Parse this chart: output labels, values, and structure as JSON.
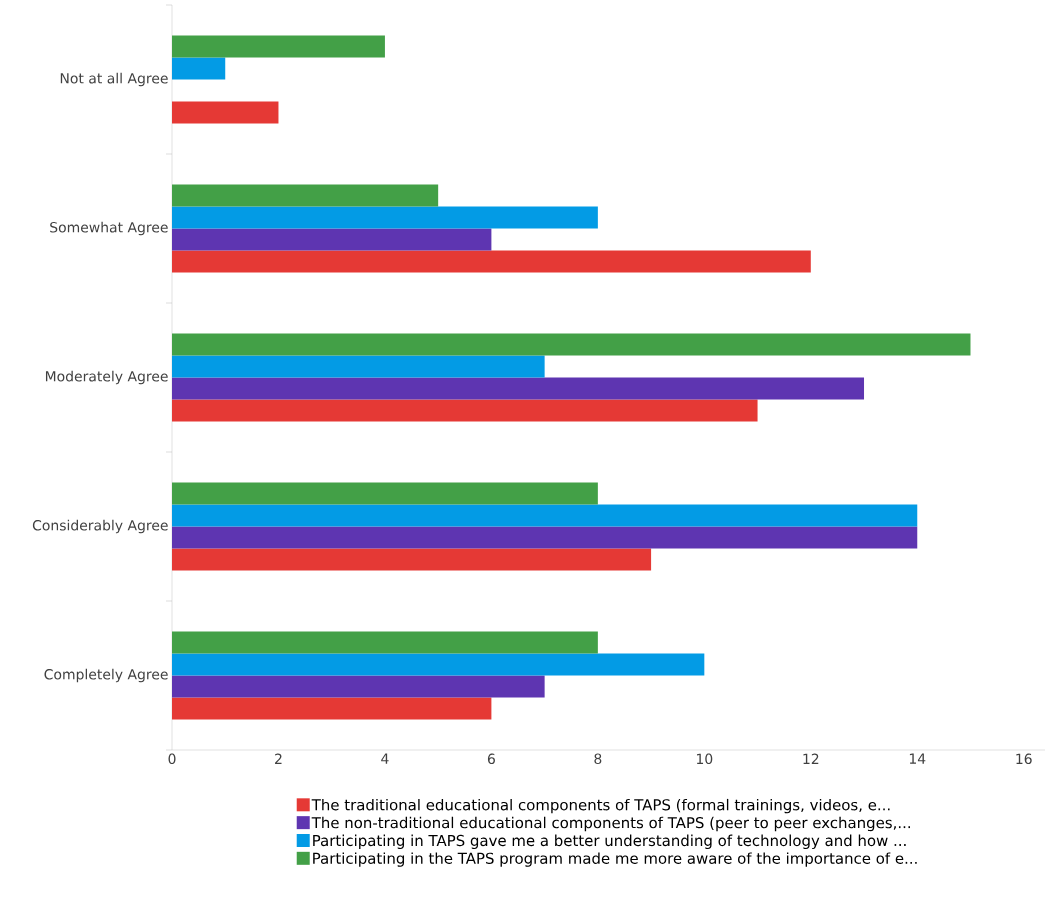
{
  "chart_data": {
    "type": "bar",
    "orientation": "horizontal",
    "categories": [
      "Not at all Agree",
      "Somewhat Agree",
      "Moderately Agree",
      "Considerably Agree",
      "Completely Agree"
    ],
    "series": [
      {
        "name": "The traditional educational components of TAPS (formal trainings, videos, e...",
        "color": "#e53935",
        "values": [
          2,
          12,
          11,
          9,
          6
        ]
      },
      {
        "name": "The non-traditional educational components of TAPS (peer to peer exchanges,...",
        "color": "#5e35b1",
        "values": [
          null,
          6,
          13,
          14,
          7
        ]
      },
      {
        "name": "Participating in TAPS gave me a better understanding of technology and how ...",
        "color": "#039be5",
        "values": [
          1,
          8,
          7,
          14,
          10
        ]
      },
      {
        "name": "Participating in the TAPS program made me more aware of the importance of e...",
        "color": "#43a047",
        "values": [
          4,
          5,
          15,
          8,
          8
        ]
      }
    ],
    "xlim": [
      0,
      16.4
    ],
    "xticks": [
      0,
      2,
      4,
      6,
      8,
      10,
      12,
      14,
      16
    ],
    "legend": "bottom"
  }
}
